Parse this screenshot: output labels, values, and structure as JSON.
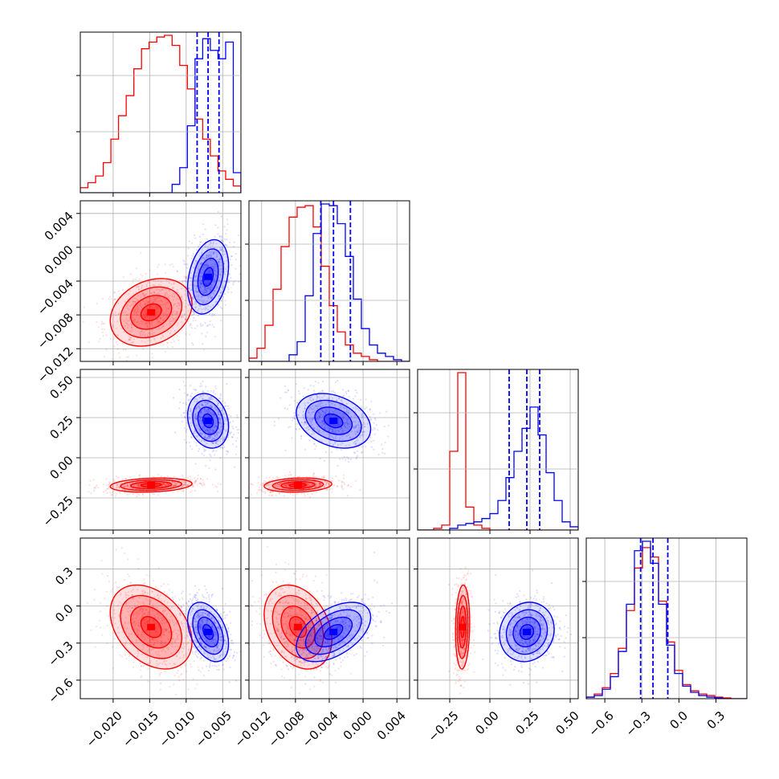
{
  "colors": {
    "red": "#ff0000",
    "blue": "#0000ff",
    "grid": "#b0b0b0",
    "frame": "#000000"
  },
  "chart_data": {
    "type": "corner",
    "grid": true,
    "series": [
      {
        "key": "red",
        "color": "#ff0000",
        "sd": [
          0.0028,
          0.002,
          0.022,
          0.17
        ],
        "rho": [
          [
            1,
            0.25,
            0.2,
            -0.35
          ],
          [
            0.25,
            1,
            0.15,
            -0.3
          ],
          [
            0.2,
            0.15,
            1,
            0.1
          ],
          [
            -0.35,
            -0.3,
            0.1,
            1
          ]
        ]
      },
      {
        "key": "blue",
        "color": "#0000ff",
        "sd": [
          0.0014,
          0.0022,
          0.085,
          0.12
        ],
        "rho": [
          [
            1,
            0.3,
            -0.2,
            -0.4
          ],
          [
            0.3,
            1,
            -0.3,
            0.5
          ],
          [
            -0.2,
            -0.3,
            1,
            0.1
          ],
          [
            -0.4,
            0.5,
            0.1,
            1
          ]
        ]
      }
    ],
    "parameters": [
      {
        "ticks": [
          -0.02,
          -0.015,
          -0.01,
          -0.005
        ],
        "tick_labels": [
          "−0.020",
          "−0.015",
          "−0.010",
          "−0.005"
        ],
        "range": [
          -0.0245,
          -0.0025
        ],
        "red_center": -0.0148,
        "blue_center": -0.007,
        "blue_quantiles": [
          -0.0085,
          -0.007,
          -0.0055
        ],
        "hist_red": [
          0.3,
          0.6,
          1.0,
          1.8,
          3.2,
          4.6,
          5.8,
          7.4,
          8.6,
          9.0,
          9.3,
          9.4,
          8.8,
          7.6,
          6.2,
          4.4,
          3.2,
          2.2,
          1.3,
          0.8,
          0.4
        ],
        "hist_blue": [
          0,
          0,
          0,
          0,
          0,
          0,
          0,
          0,
          0,
          0,
          0,
          0,
          0.5,
          1.5,
          4.0,
          8.0,
          9.2,
          8.5,
          8.0,
          9.0,
          1.2
        ]
      },
      {
        "ticks": [
          -0.012,
          -0.008,
          -0.004,
          0.0,
          0.004
        ],
        "tick_labels": [
          "−0.012",
          "−0.008",
          "−0.004",
          "0.000",
          "0.004"
        ],
        "range": [
          -0.0135,
          0.0055
        ],
        "red_center": -0.0077,
        "blue_center": -0.0035,
        "blue_quantiles": [
          -0.005,
          -0.0035,
          -0.0015
        ],
        "hist_red": [
          0.2,
          0.8,
          2.2,
          4.4,
          7.0,
          8.8,
          9.4,
          9.5,
          8.2,
          5.8,
          3.4,
          1.8,
          1.0,
          0.5,
          0.3,
          0.1,
          0,
          0,
          0,
          0
        ],
        "hist_blue": [
          0,
          0,
          0,
          0,
          0,
          0.4,
          1.2,
          4.0,
          7.8,
          9.6,
          9.5,
          8.4,
          6.4,
          3.8,
          2.0,
          1.0,
          0.5,
          0.3,
          0.1,
          0
        ]
      },
      {
        "ticks": [
          -0.25,
          0.0,
          0.25,
          0.5
        ],
        "tick_labels": [
          "−0.25",
          "0.00",
          "0.25",
          "0.50"
        ],
        "range": [
          -0.45,
          0.55
        ],
        "red_center": -0.17,
        "blue_center": 0.23,
        "blue_quantiles": [
          0.12,
          0.23,
          0.31
        ],
        "hist_red": [
          0,
          0,
          0.1,
          0.3,
          4.8,
          9.6,
          1.4,
          0.3,
          0.1,
          0,
          0,
          0,
          0,
          0,
          0,
          0,
          0,
          0,
          0,
          0
        ],
        "hist_blue": [
          0,
          0,
          0,
          0,
          0.1,
          0.3,
          0.4,
          0.5,
          0.7,
          1.0,
          1.8,
          3.2,
          4.8,
          6.2,
          7.5,
          5.8,
          3.5,
          1.8,
          0.5,
          0.2
        ]
      },
      {
        "ticks": [
          -0.6,
          -0.3,
          0.0,
          0.3
        ],
        "tick_labels": [
          "−0.6",
          "−0.3",
          "0.0",
          "0.3"
        ],
        "range": [
          -0.75,
          0.55
        ],
        "red_center": -0.17,
        "blue_center": -0.21,
        "blue_quantiles": [
          -0.31,
          -0.21,
          -0.09
        ],
        "hist_red": [
          0.1,
          0.3,
          0.7,
          1.6,
          3.2,
          5.6,
          8.3,
          9.6,
          9.0,
          6.2,
          3.6,
          1.8,
          0.9,
          0.5,
          0.3,
          0.2,
          0.1,
          0.05,
          0,
          0
        ],
        "hist_blue": [
          0.1,
          0.2,
          0.6,
          1.4,
          3.0,
          6.0,
          9.4,
          10.0,
          8.6,
          6.0,
          3.4,
          1.6,
          0.8,
          0.4,
          0.2,
          0.1,
          0.05,
          0,
          0,
          0
        ]
      }
    ]
  }
}
